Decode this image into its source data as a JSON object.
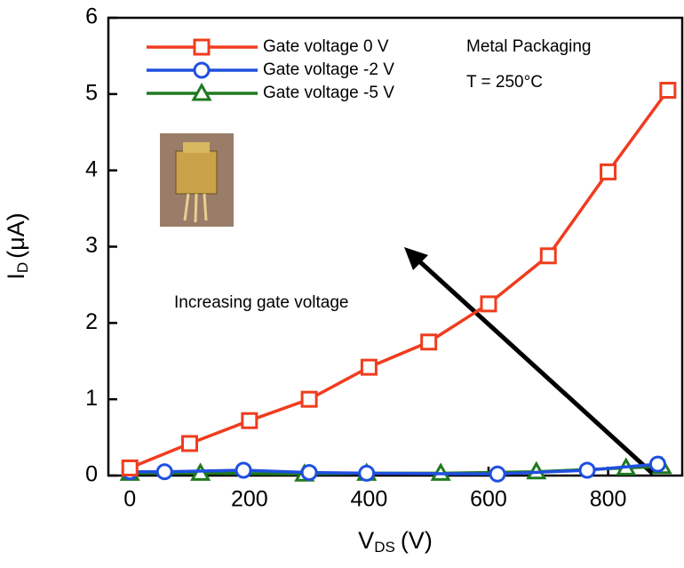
{
  "chart_data": {
    "type": "line",
    "ylabel_parts": [
      "I",
      "D",
      "(μA)"
    ],
    "xlabel_parts": [
      "V",
      "DS",
      "(V)"
    ],
    "annotations": [
      "Metal Packaging",
      "T = 250°C",
      "Increasing gate voltage"
    ],
    "xlim": [
      -36,
      924
    ],
    "ylim": [
      0,
      6
    ],
    "xticks": [
      0,
      200,
      400,
      600,
      800
    ],
    "yticks": [
      0,
      1,
      2,
      3,
      4,
      5,
      6
    ],
    "legend": "upper left",
    "series": [
      {
        "name": "Gate voltage 0 V",
        "color": "#f03c1e",
        "marker": "square",
        "x": [
          0,
          100,
          200,
          300,
          400,
          500,
          600,
          700,
          800,
          900
        ],
        "values": [
          0.1,
          0.42,
          0.72,
          1.0,
          1.42,
          1.75,
          2.25,
          2.88,
          3.98,
          5.05
        ]
      },
      {
        "name": "Gate voltage -2 V",
        "color": "#1f4fe0",
        "marker": "circle",
        "x": [
          0,
          58,
          190,
          300,
          396,
          615,
          765,
          883
        ],
        "values": [
          0.05,
          0.05,
          0.07,
          0.04,
          0.03,
          0.02,
          0.07,
          0.15
        ]
      },
      {
        "name": "Gate voltage -5 V",
        "color": "#1f7a1f",
        "marker": "triangle",
        "x": [
          0,
          118,
          292,
          396,
          520,
          680,
          830,
          890
        ],
        "values": [
          0.03,
          0.03,
          0.02,
          0.03,
          0.03,
          0.05,
          0.1,
          0.12
        ]
      }
    ]
  }
}
